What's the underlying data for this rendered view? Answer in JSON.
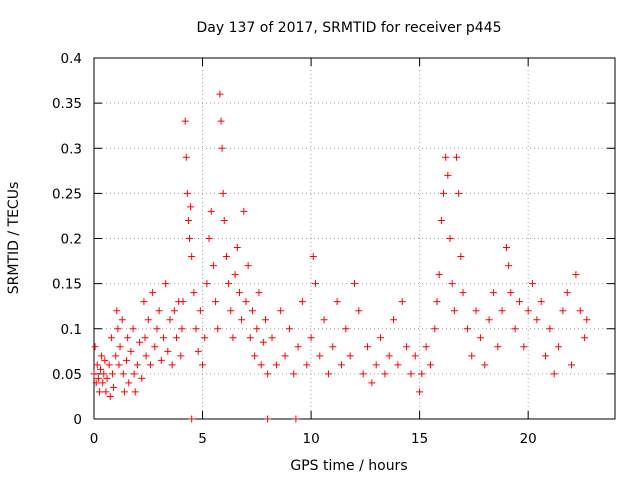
{
  "chart_data": {
    "type": "scatter",
    "title": "Day 137 of 2017, SRMTID for receiver p445",
    "xlabel": "GPS time / hours",
    "ylabel": "SRMTID / TECUs",
    "xlim": [
      0,
      24
    ],
    "ylim": [
      0,
      0.4
    ],
    "xticks": [
      0,
      5,
      10,
      15,
      20
    ],
    "xtick_labels": [
      "0",
      "5",
      "10",
      "15",
      "20"
    ],
    "yticks": [
      0,
      0.05,
      0.1,
      0.15,
      0.2,
      0.25,
      0.3,
      0.35,
      0.4
    ],
    "ytick_labels": [
      "0",
      "0.05",
      "0.1",
      "0.15",
      "0.2",
      "0.25",
      "0.3",
      "0.35",
      "0.4"
    ],
    "grid": true,
    "marker": "plus",
    "marker_color": "#ff0000",
    "series": [
      {
        "name": "SRMTID",
        "points": [
          [
            0.0,
            0.05
          ],
          [
            0.05,
            0.08
          ],
          [
            0.1,
            0.04
          ],
          [
            0.15,
            0.06
          ],
          [
            0.2,
            0.045
          ],
          [
            0.25,
            0.03
          ],
          [
            0.3,
            0.055
          ],
          [
            0.35,
            0.07
          ],
          [
            0.4,
            0.04
          ],
          [
            0.45,
            0.05
          ],
          [
            0.5,
            0.065
          ],
          [
            0.55,
            0.03
          ],
          [
            0.6,
            0.045
          ],
          [
            0.7,
            0.06
          ],
          [
            0.75,
            0.025
          ],
          [
            0.8,
            0.09
          ],
          [
            0.85,
            0.05
          ],
          [
            0.9,
            0.035
          ],
          [
            1.0,
            0.07
          ],
          [
            1.05,
            0.12
          ],
          [
            1.1,
            0.1
          ],
          [
            1.15,
            0.06
          ],
          [
            1.2,
            0.08
          ],
          [
            1.3,
            0.11
          ],
          [
            1.35,
            0.05
          ],
          [
            1.4,
            0.03
          ],
          [
            1.5,
            0.065
          ],
          [
            1.55,
            0.09
          ],
          [
            1.6,
            0.04
          ],
          [
            1.7,
            0.075
          ],
          [
            1.8,
            0.1
          ],
          [
            1.85,
            0.05
          ],
          [
            1.9,
            0.03
          ],
          [
            2.0,
            0.06
          ],
          [
            2.1,
            0.085
          ],
          [
            2.2,
            0.045
          ],
          [
            2.3,
            0.13
          ],
          [
            2.35,
            0.09
          ],
          [
            2.4,
            0.07
          ],
          [
            2.5,
            0.11
          ],
          [
            2.6,
            0.06
          ],
          [
            2.7,
            0.14
          ],
          [
            2.8,
            0.08
          ],
          [
            2.9,
            0.1
          ],
          [
            3.0,
            0.12
          ],
          [
            3.1,
            0.065
          ],
          [
            3.2,
            0.09
          ],
          [
            3.3,
            0.15
          ],
          [
            3.4,
            0.075
          ],
          [
            3.5,
            0.11
          ],
          [
            3.6,
            0.06
          ],
          [
            3.7,
            0.12
          ],
          [
            3.8,
            0.09
          ],
          [
            3.9,
            0.13
          ],
          [
            4.0,
            0.07
          ],
          [
            4.05,
            0.1
          ],
          [
            4.1,
            0.13
          ],
          [
            4.2,
            0.33
          ],
          [
            4.25,
            0.29
          ],
          [
            4.3,
            0.25
          ],
          [
            4.35,
            0.22
          ],
          [
            4.4,
            0.2
          ],
          [
            4.45,
            0.235
          ],
          [
            4.5,
            0.18
          ],
          [
            4.6,
            0.14
          ],
          [
            4.7,
            0.1
          ],
          [
            4.8,
            0.075
          ],
          [
            4.9,
            0.12
          ],
          [
            5.0,
            0.06
          ],
          [
            5.1,
            0.09
          ],
          [
            5.2,
            0.15
          ],
          [
            5.3,
            0.2
          ],
          [
            5.4,
            0.23
          ],
          [
            5.5,
            0.17
          ],
          [
            5.6,
            0.13
          ],
          [
            5.7,
            0.1
          ],
          [
            5.8,
            0.36
          ],
          [
            5.85,
            0.33
          ],
          [
            5.9,
            0.3
          ],
          [
            5.95,
            0.25
          ],
          [
            6.0,
            0.22
          ],
          [
            6.1,
            0.18
          ],
          [
            6.2,
            0.15
          ],
          [
            6.3,
            0.12
          ],
          [
            6.4,
            0.09
          ],
          [
            6.5,
            0.16
          ],
          [
            6.6,
            0.19
          ],
          [
            6.7,
            0.14
          ],
          [
            6.8,
            0.11
          ],
          [
            6.9,
            0.23
          ],
          [
            7.0,
            0.13
          ],
          [
            7.1,
            0.17
          ],
          [
            7.2,
            0.09
          ],
          [
            7.3,
            0.12
          ],
          [
            7.4,
            0.07
          ],
          [
            7.5,
            0.1
          ],
          [
            7.6,
            0.14
          ],
          [
            7.7,
            0.06
          ],
          [
            7.8,
            0.085
          ],
          [
            7.9,
            0.11
          ],
          [
            8.0,
            0.05
          ],
          [
            8.2,
            0.09
          ],
          [
            8.4,
            0.06
          ],
          [
            8.6,
            0.12
          ],
          [
            8.8,
            0.07
          ],
          [
            9.0,
            0.1
          ],
          [
            9.2,
            0.05
          ],
          [
            9.4,
            0.08
          ],
          [
            9.6,
            0.13
          ],
          [
            9.8,
            0.06
          ],
          [
            10.0,
            0.09
          ],
          [
            10.1,
            0.18
          ],
          [
            10.2,
            0.15
          ],
          [
            10.4,
            0.07
          ],
          [
            10.6,
            0.11
          ],
          [
            10.8,
            0.05
          ],
          [
            11.0,
            0.08
          ],
          [
            11.2,
            0.13
          ],
          [
            11.4,
            0.06
          ],
          [
            11.6,
            0.1
          ],
          [
            11.8,
            0.07
          ],
          [
            12.0,
            0.15
          ],
          [
            12.2,
            0.12
          ],
          [
            12.4,
            0.05
          ],
          [
            12.6,
            0.08
          ],
          [
            12.8,
            0.04
          ],
          [
            13.0,
            0.06
          ],
          [
            13.2,
            0.09
          ],
          [
            13.4,
            0.05
          ],
          [
            13.6,
            0.07
          ],
          [
            13.8,
            0.11
          ],
          [
            14.0,
            0.06
          ],
          [
            14.2,
            0.13
          ],
          [
            14.4,
            0.08
          ],
          [
            14.6,
            0.05
          ],
          [
            14.8,
            0.07
          ],
          [
            15.0,
            0.03
          ],
          [
            15.1,
            0.05
          ],
          [
            15.3,
            0.08
          ],
          [
            15.5,
            0.06
          ],
          [
            15.7,
            0.1
          ],
          [
            15.8,
            0.13
          ],
          [
            15.9,
            0.16
          ],
          [
            16.0,
            0.22
          ],
          [
            16.1,
            0.25
          ],
          [
            16.2,
            0.29
          ],
          [
            16.3,
            0.27
          ],
          [
            16.4,
            0.2
          ],
          [
            16.5,
            0.15
          ],
          [
            16.6,
            0.12
          ],
          [
            16.7,
            0.29
          ],
          [
            16.8,
            0.25
          ],
          [
            16.9,
            0.18
          ],
          [
            17.0,
            0.14
          ],
          [
            17.2,
            0.1
          ],
          [
            17.4,
            0.07
          ],
          [
            17.6,
            0.12
          ],
          [
            17.8,
            0.09
          ],
          [
            18.0,
            0.06
          ],
          [
            18.2,
            0.11
          ],
          [
            18.4,
            0.14
          ],
          [
            18.6,
            0.08
          ],
          [
            18.8,
            0.12
          ],
          [
            19.0,
            0.19
          ],
          [
            19.1,
            0.17
          ],
          [
            19.2,
            0.14
          ],
          [
            19.4,
            0.1
          ],
          [
            19.6,
            0.13
          ],
          [
            19.8,
            0.08
          ],
          [
            20.0,
            0.12
          ],
          [
            20.2,
            0.15
          ],
          [
            20.4,
            0.11
          ],
          [
            20.6,
            0.13
          ],
          [
            20.8,
            0.07
          ],
          [
            21.0,
            0.1
          ],
          [
            21.2,
            0.05
          ],
          [
            21.4,
            0.08
          ],
          [
            21.6,
            0.12
          ],
          [
            21.8,
            0.14
          ],
          [
            22.0,
            0.06
          ],
          [
            22.2,
            0.16
          ],
          [
            22.4,
            0.12
          ],
          [
            22.6,
            0.09
          ],
          [
            22.7,
            0.11
          ]
        ],
        "zero_points": [
          4.5,
          8.0,
          9.3
        ]
      }
    ]
  }
}
